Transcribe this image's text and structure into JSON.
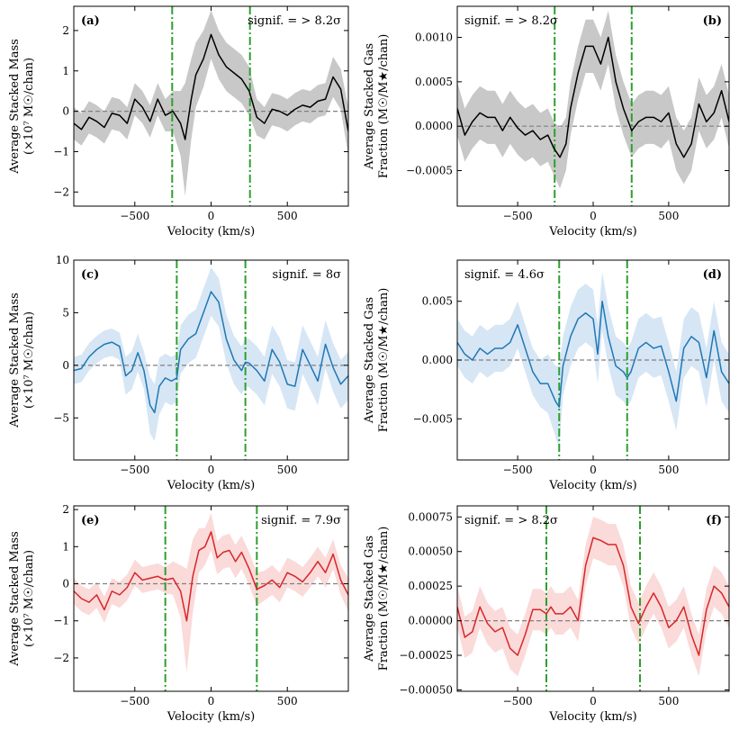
{
  "figure": {
    "xlabel": "Velocity (km/s)"
  },
  "chart_data": [
    {
      "type": "line",
      "panel": "(a)",
      "signif": "signif. = > 8.2σ",
      "ylabel_lines": [
        "Average Stacked Mass",
        "(×10⁷ M☉/chan)"
      ],
      "xlim": [
        -900,
        900
      ],
      "ylim": [
        -2.35,
        2.6
      ],
      "xticks": [
        -500,
        0,
        500
      ],
      "yticks": [
        -2,
        -1,
        0,
        1,
        2
      ],
      "ytick_labels": [
        "−2",
        "−1",
        "0",
        "1",
        "2"
      ],
      "vlines": [
        -255,
        255
      ],
      "series_color": "#000000",
      "band_color": "#c8c8c8",
      "x": [
        -900,
        -850,
        -800,
        -750,
        -700,
        -650,
        -600,
        -550,
        -500,
        -450,
        -400,
        -350,
        -300,
        -250,
        -200,
        -170,
        -130,
        -100,
        -50,
        0,
        50,
        100,
        150,
        200,
        250,
        300,
        350,
        400,
        450,
        500,
        550,
        600,
        650,
        700,
        750,
        800,
        850,
        900
      ],
      "y": [
        -0.3,
        -0.45,
        -0.15,
        -0.25,
        -0.4,
        -0.05,
        -0.1,
        -0.3,
        0.3,
        0.1,
        -0.25,
        0.3,
        -0.1,
        0.0,
        -0.3,
        -0.7,
        0.3,
        0.9,
        1.3,
        1.9,
        1.4,
        1.1,
        0.95,
        0.8,
        0.5,
        -0.15,
        -0.3,
        0.05,
        0.0,
        -0.1,
        0.05,
        0.15,
        0.1,
        0.25,
        0.3,
        0.85,
        0.55,
        -0.5
      ],
      "band_lo": [
        -0.7,
        -0.85,
        -0.55,
        -0.65,
        -0.8,
        -0.45,
        -0.5,
        -0.7,
        -0.1,
        -0.3,
        -0.65,
        -0.1,
        -0.5,
        -0.5,
        -1.1,
        -2.1,
        -0.7,
        0.1,
        0.6,
        1.3,
        0.8,
        0.5,
        0.35,
        0.2,
        -0.1,
        -0.6,
        -0.7,
        -0.35,
        -0.4,
        -0.5,
        -0.35,
        -0.25,
        -0.3,
        -0.15,
        -0.1,
        0.35,
        0.05,
        -1.1
      ],
      "band_hi": [
        0.1,
        -0.05,
        0.25,
        0.15,
        0.0,
        0.35,
        0.3,
        0.1,
        0.7,
        0.5,
        0.15,
        0.7,
        0.3,
        0.5,
        0.5,
        0.7,
        1.3,
        1.7,
        2.0,
        2.5,
        2.0,
        1.7,
        1.55,
        1.4,
        1.1,
        0.3,
        0.1,
        0.45,
        0.4,
        0.3,
        0.45,
        0.55,
        0.5,
        0.65,
        0.7,
        1.35,
        1.05,
        0.1
      ]
    },
    {
      "type": "line",
      "panel": "(b)",
      "signif": "signif. = > 8.2σ",
      "ylabel_lines": [
        "Average Stacked Gas",
        "Fraction (M☉/M★/chan)"
      ],
      "xlim": [
        -900,
        900
      ],
      "ylim": [
        -0.0009,
        0.00135
      ],
      "xticks": [
        -500,
        0,
        500
      ],
      "yticks": [
        -0.0005,
        0.0,
        0.0005,
        0.001
      ],
      "ytick_labels": [
        "−0.0005",
        "0.0000",
        "0.0005",
        "0.0010"
      ],
      "vlines": [
        -255,
        255
      ],
      "series_color": "#000000",
      "band_color": "#c8c8c8",
      "x": [
        -900,
        -850,
        -800,
        -750,
        -700,
        -650,
        -600,
        -550,
        -500,
        -450,
        -400,
        -350,
        -300,
        -260,
        -220,
        -180,
        -150,
        -100,
        -50,
        0,
        50,
        100,
        150,
        200,
        255,
        300,
        350,
        400,
        450,
        500,
        550,
        600,
        650,
        700,
        750,
        800,
        850,
        900
      ],
      "y": [
        0.0002,
        -0.0001,
        5e-05,
        0.00015,
        0.0001,
        0.0001,
        -5e-05,
        0.0001,
        -2e-05,
        -0.0001,
        -5e-05,
        -0.00015,
        -0.0001,
        -0.00025,
        -0.00035,
        -0.0002,
        0.0002,
        0.0006,
        0.0009,
        0.0009,
        0.0007,
        0.001,
        0.0005,
        0.0002,
        -5e-05,
        5e-05,
        0.0001,
        0.0001,
        5e-05,
        0.00015,
        -0.0002,
        -0.00035,
        -0.0002,
        0.00025,
        5e-05,
        0.00015,
        0.0004,
        5e-05
      ],
      "band_lo": [
        -0.0001,
        -0.0004,
        -0.00025,
        -0.00015,
        -0.0002,
        -0.0002,
        -0.00035,
        -0.0002,
        -0.00032,
        -0.0004,
        -0.00035,
        -0.00045,
        -0.0004,
        -0.00055,
        -0.0007,
        -0.0005,
        -0.0001,
        0.0003,
        0.0006,
        0.0006,
        0.0004,
        0.0007,
        0.0002,
        -0.0001,
        -0.00035,
        -0.00025,
        -0.0002,
        -0.0002,
        -0.00025,
        -0.00015,
        -0.0005,
        -0.00065,
        -0.0005,
        -5e-05,
        -0.00025,
        -0.00015,
        0.0001,
        -0.00025
      ],
      "band_hi": [
        0.0005,
        0.0002,
        0.00035,
        0.00045,
        0.0004,
        0.0004,
        0.00025,
        0.0004,
        0.00028,
        0.0002,
        0.00025,
        0.00015,
        0.0002,
        5e-05,
        -2e-05,
        0.0001,
        0.0005,
        0.0009,
        0.0012,
        0.0012,
        0.001,
        0.0013,
        0.0008,
        0.0005,
        0.00025,
        0.00035,
        0.0004,
        0.0004,
        0.00035,
        0.00045,
        0.0001,
        -5e-05,
        0.0001,
        0.00055,
        0.00035,
        0.00045,
        0.0007,
        0.00035
      ]
    },
    {
      "type": "line",
      "panel": "(c)",
      "signif": "signif. = 8σ",
      "ylabel_lines": [
        "Average Stacked Mass",
        "(×10⁷ M☉/chan)"
      ],
      "xlim": [
        -900,
        900
      ],
      "ylim": [
        -9,
        10
      ],
      "xticks": [
        -500,
        0,
        500
      ],
      "yticks": [
        -5,
        0,
        5,
        10
      ],
      "ytick_labels": [
        "−5",
        "0",
        "5",
        "10"
      ],
      "vlines": [
        -225,
        225
      ],
      "series_color": "#1f77b4",
      "band_color": "#d6e6f5",
      "x": [
        -900,
        -850,
        -800,
        -750,
        -700,
        -650,
        -600,
        -560,
        -520,
        -480,
        -440,
        -400,
        -370,
        -340,
        -300,
        -260,
        -225,
        -200,
        -150,
        -100,
        -50,
        0,
        50,
        100,
        150,
        200,
        225,
        250,
        300,
        350,
        400,
        450,
        500,
        550,
        600,
        650,
        700,
        750,
        800,
        850,
        900
      ],
      "y": [
        -0.5,
        -0.3,
        0.8,
        1.5,
        2.0,
        2.2,
        1.8,
        -1.0,
        -0.5,
        1.2,
        -0.5,
        -3.8,
        -4.5,
        -2.0,
        -1.2,
        -1.5,
        -1.2,
        1.5,
        2.5,
        3.0,
        5.0,
        7.0,
        6.0,
        2.5,
        0.5,
        -0.5,
        0.3,
        0.2,
        -0.5,
        -1.5,
        1.5,
        0.3,
        -1.8,
        -2.0,
        1.5,
        0.0,
        -1.5,
        2.0,
        -0.2,
        -1.8,
        -1.0
      ],
      "band_lo": [
        -1.8,
        -1.6,
        -0.5,
        0.2,
        0.7,
        0.9,
        0.5,
        -2.8,
        -2.3,
        -0.6,
        -2.3,
        -6.5,
        -7.2,
        -4.7,
        -3.5,
        -3.8,
        -3.5,
        -0.8,
        0.2,
        0.7,
        2.7,
        4.7,
        3.7,
        0.2,
        -1.8,
        -2.8,
        -2.0,
        -2.1,
        -2.8,
        -3.8,
        -0.8,
        -2.0,
        -4.1,
        -4.3,
        -0.8,
        -2.3,
        -3.8,
        -0.3,
        -2.5,
        -4.1,
        -3.3
      ],
      "band_hi": [
        0.8,
        1.0,
        2.1,
        2.8,
        3.3,
        3.5,
        3.1,
        0.8,
        1.3,
        3.0,
        1.3,
        -1.1,
        -1.8,
        0.7,
        1.1,
        0.8,
        1.1,
        3.8,
        4.8,
        5.3,
        7.3,
        9.3,
        8.3,
        4.8,
        2.8,
        1.8,
        2.6,
        2.5,
        1.8,
        0.8,
        3.8,
        2.6,
        0.5,
        0.3,
        3.8,
        2.3,
        0.8,
        4.3,
        2.1,
        0.5,
        1.3
      ]
    },
    {
      "type": "line",
      "panel": "(d)",
      "signif": "signif. = 4.6σ",
      "ylabel_lines": [
        "Average Stacked Gas",
        "Fraction (M☉/M★/chan)"
      ],
      "xlim": [
        -900,
        900
      ],
      "ylim": [
        -0.0085,
        0.0085
      ],
      "xticks": [
        -500,
        0,
        500
      ],
      "yticks": [
        -0.005,
        0.0,
        0.005
      ],
      "ytick_labels": [
        "−0.005",
        "0.000",
        "0.005"
      ],
      "vlines": [
        -225,
        225
      ],
      "series_color": "#1f77b4",
      "band_color": "#d6e6f5",
      "x": [
        -900,
        -850,
        -800,
        -750,
        -700,
        -650,
        -600,
        -550,
        -500,
        -450,
        -400,
        -350,
        -300,
        -250,
        -225,
        -200,
        -150,
        -100,
        -50,
        0,
        30,
        60,
        100,
        150,
        200,
        225,
        250,
        300,
        350,
        400,
        450,
        500,
        550,
        600,
        650,
        700,
        750,
        800,
        850,
        900
      ],
      "y": [
        0.0015,
        0.0005,
        0.0,
        0.001,
        0.0005,
        0.001,
        0.001,
        0.0015,
        0.003,
        0.001,
        -0.001,
        -0.002,
        -0.002,
        -0.0035,
        -0.004,
        -0.0005,
        0.002,
        0.0035,
        0.004,
        0.0035,
        0.0005,
        0.005,
        0.002,
        -0.0005,
        -0.001,
        -0.0015,
        -0.001,
        0.001,
        0.0015,
        0.001,
        0.0012,
        -0.001,
        -0.0035,
        0.001,
        0.002,
        0.0015,
        -0.0015,
        0.0025,
        -0.001,
        -0.002
      ],
      "band_lo": [
        -0.0005,
        -0.0015,
        -0.002,
        -0.001,
        -0.0015,
        -0.001,
        -0.001,
        -0.0005,
        0.001,
        -0.001,
        -0.003,
        -0.004,
        -0.0045,
        -0.0065,
        -0.0075,
        -0.003,
        -0.0005,
        0.001,
        0.0015,
        0.001,
        -0.002,
        0.0025,
        -0.0005,
        -0.003,
        -0.0035,
        -0.004,
        -0.0035,
        -0.0015,
        -0.001,
        -0.0015,
        -0.0013,
        -0.0035,
        -0.006,
        -0.0015,
        -0.0005,
        -0.001,
        -0.004,
        0.0,
        -0.0035,
        -0.0045
      ],
      "band_hi": [
        0.0035,
        0.0025,
        0.002,
        0.003,
        0.0025,
        0.003,
        0.003,
        0.0035,
        0.005,
        0.003,
        0.001,
        0.0,
        0.0005,
        -0.0005,
        -0.0005,
        0.002,
        0.0045,
        0.006,
        0.0065,
        0.006,
        0.003,
        0.0075,
        0.0045,
        0.002,
        0.0015,
        0.001,
        0.0015,
        0.0035,
        0.004,
        0.0035,
        0.0037,
        0.0015,
        -0.001,
        0.0035,
        0.0045,
        0.004,
        0.001,
        0.005,
        0.0015,
        0.0005
      ]
    },
    {
      "type": "line",
      "panel": "(e)",
      "signif": "signif. = 7.9σ",
      "ylabel_lines": [
        "Average Stacked Mass",
        "(×10⁷ M☉/chan)"
      ],
      "xlim": [
        -900,
        900
      ],
      "ylim": [
        -2.9,
        2.1
      ],
      "xticks": [
        -500,
        0,
        500
      ],
      "yticks": [
        -2,
        -1,
        0,
        1,
        2
      ],
      "ytick_labels": [
        "−2",
        "−1",
        "0",
        "1",
        "2"
      ],
      "vlines": [
        -300,
        300
      ],
      "series_color": "#d62728",
      "band_color": "#fbdada",
      "x": [
        -900,
        -850,
        -800,
        -750,
        -700,
        -650,
        -600,
        -550,
        -500,
        -450,
        -400,
        -350,
        -300,
        -250,
        -200,
        -160,
        -120,
        -80,
        -40,
        0,
        40,
        80,
        120,
        160,
        200,
        250,
        300,
        350,
        400,
        450,
        500,
        550,
        600,
        650,
        700,
        750,
        800,
        850,
        900
      ],
      "y": [
        -0.2,
        -0.4,
        -0.5,
        -0.3,
        -0.7,
        -0.2,
        -0.3,
        -0.1,
        0.3,
        0.1,
        0.15,
        0.2,
        0.1,
        0.15,
        -0.2,
        -1.0,
        0.2,
        0.9,
        1.0,
        1.4,
        0.7,
        0.85,
        0.9,
        0.6,
        0.85,
        0.4,
        -0.15,
        -0.05,
        0.1,
        -0.1,
        0.3,
        0.2,
        0.05,
        0.3,
        0.6,
        0.3,
        0.8,
        0.1,
        -0.3
      ],
      "band_lo": [
        -0.55,
        -0.75,
        -0.85,
        -0.65,
        -1.05,
        -0.55,
        -0.65,
        -0.45,
        -0.05,
        -0.25,
        -0.2,
        -0.15,
        -0.25,
        -0.3,
        -0.9,
        -2.4,
        -0.8,
        0.3,
        0.5,
        0.9,
        0.25,
        0.4,
        0.45,
        0.15,
        0.4,
        -0.05,
        -0.6,
        -0.45,
        -0.3,
        -0.5,
        -0.1,
        -0.2,
        -0.35,
        -0.1,
        0.2,
        -0.1,
        0.4,
        -0.3,
        -0.75
      ],
      "band_hi": [
        0.15,
        -0.05,
        -0.15,
        0.05,
        -0.35,
        0.15,
        0.05,
        0.25,
        0.65,
        0.45,
        0.5,
        0.55,
        0.45,
        0.6,
        0.5,
        0.4,
        1.2,
        1.5,
        1.5,
        1.9,
        1.15,
        1.3,
        1.35,
        1.05,
        1.3,
        0.85,
        0.3,
        0.35,
        0.5,
        0.3,
        0.7,
        0.6,
        0.45,
        0.7,
        1.0,
        0.7,
        1.2,
        0.5,
        0.15
      ]
    },
    {
      "type": "line",
      "panel": "(f)",
      "signif": "signif. = > 8.2σ",
      "ylabel_lines": [
        "Average Stacked Gas",
        "Fraction (M☉/M★/chan)"
      ],
      "xlim": [
        -900,
        900
      ],
      "ylim": [
        -0.00051,
        0.00083
      ],
      "xticks": [
        -500,
        0,
        500
      ],
      "yticks": [
        -0.0005,
        -0.00025,
        0.0,
        0.00025,
        0.0005,
        0.00075
      ],
      "ytick_labels": [
        "−0.00050",
        "−0.00025",
        "0.00000",
        "0.00025",
        "0.00050",
        "0.00075"
      ],
      "vlines": [
        -310,
        310
      ],
      "series_color": "#d62728",
      "band_color": "#fbdada",
      "x": [
        -900,
        -850,
        -800,
        -750,
        -700,
        -650,
        -600,
        -550,
        -500,
        -450,
        -400,
        -350,
        -310,
        -280,
        -250,
        -200,
        -150,
        -100,
        -50,
        0,
        50,
        100,
        150,
        200,
        250,
        300,
        350,
        400,
        450,
        500,
        550,
        600,
        650,
        700,
        750,
        800,
        850,
        900
      ],
      "y": [
        0.0001,
        -0.00012,
        -8e-05,
        0.0001,
        -2e-05,
        -8e-05,
        -5e-05,
        -0.0002,
        -0.00025,
        -0.0001,
        8e-05,
        8e-05,
        5e-05,
        0.0001,
        5e-05,
        5e-05,
        0.0001,
        0.0,
        0.0004,
        0.0006,
        0.00058,
        0.00055,
        0.00055,
        0.0004,
        0.0001,
        -2e-05,
        0.0001,
        0.0002,
        0.0001,
        -5e-05,
        0.0,
        0.0001,
        -0.0001,
        -0.00025,
        8e-05,
        0.00025,
        0.0002,
        0.0001
      ],
      "band_lo": [
        -5e-05,
        -0.00027,
        -0.00023,
        -5e-05,
        -0.00017,
        -0.00023,
        -0.0002,
        -0.00035,
        -0.0004,
        -0.00025,
        -7e-05,
        -7e-05,
        -0.0001,
        -5e-05,
        -0.0001,
        -0.0001,
        -5e-05,
        -0.00015,
        0.00025,
        0.00045,
        0.00043,
        0.0004,
        0.0004,
        0.00025,
        -5e-05,
        -0.00017,
        -5e-05,
        5e-05,
        -5e-05,
        -0.0002,
        -0.00015,
        -5e-05,
        -0.00025,
        -0.0004,
        -7e-05,
        0.0001,
        5e-05,
        -5e-05
      ],
      "band_hi": [
        0.00025,
        3e-05,
        7e-05,
        0.00025,
        0.00013,
        7e-05,
        0.0001,
        -5e-05,
        -0.0001,
        5e-05,
        0.00023,
        0.00023,
        0.0002,
        0.00025,
        0.0002,
        0.0002,
        0.00025,
        0.00015,
        0.00055,
        0.00075,
        0.00073,
        0.0007,
        0.0007,
        0.00055,
        0.00025,
        0.00013,
        0.00025,
        0.00035,
        0.00025,
        0.0001,
        0.00015,
        0.00025,
        5e-05,
        -0.0001,
        0.00023,
        0.0004,
        0.00035,
        0.00025
      ]
    }
  ]
}
